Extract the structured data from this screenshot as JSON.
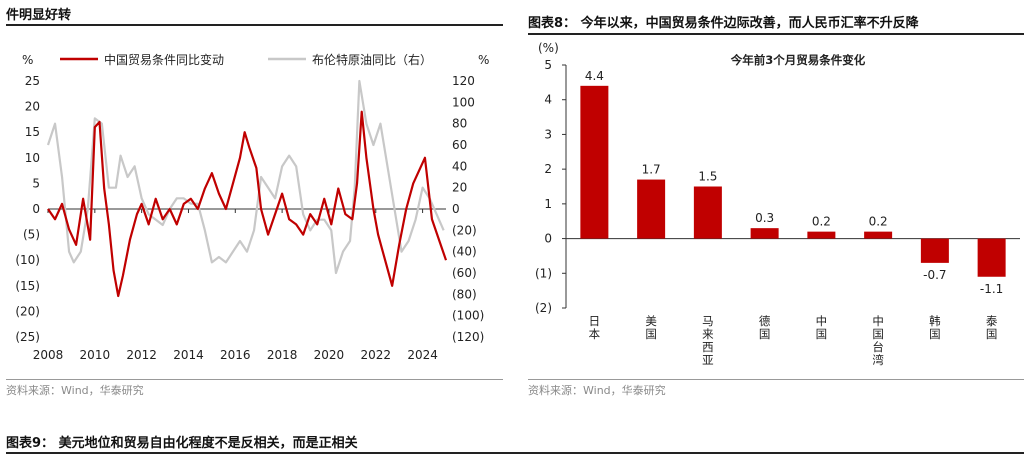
{
  "left": {
    "title": "件明显好转",
    "source": "资料来源：Wind，华泰研究",
    "chart_data": {
      "type": "line",
      "left_unit": "%",
      "right_unit": "%",
      "x_ticks": [
        "2008",
        "2010",
        "2012",
        "2014",
        "2016",
        "2018",
        "2020",
        "2022",
        "2024"
      ],
      "x_range": [
        2008,
        2025.0
      ],
      "y_left_ticks": [
        25,
        20,
        15,
        10,
        5,
        0,
        -5,
        -10,
        -15,
        -20,
        -25
      ],
      "y_left_tick_labels": [
        "25",
        "20",
        "15",
        "10",
        "5",
        "0",
        "(5)",
        "(10)",
        "(15)",
        "(20)",
        "(25)"
      ],
      "y_left_range": [
        -25,
        25
      ],
      "y_right_ticks": [
        120,
        100,
        80,
        60,
        40,
        20,
        0,
        -20,
        -40,
        -60,
        -80,
        -100,
        -120
      ],
      "y_right_tick_labels": [
        "120",
        "100",
        "80",
        "60",
        "40",
        "20",
        "0",
        "(20)",
        "(40)",
        "(60)",
        "(80)",
        "(100)",
        "(120)"
      ],
      "y_right_range": [
        -120,
        120
      ],
      "series": [
        {
          "name": "中国贸易条件同比变动",
          "color": "#c00000",
          "axis": "left",
          "x": [
            2008,
            2008.3,
            2008.6,
            2008.9,
            2009.2,
            2009.5,
            2009.8,
            2010.0,
            2010.2,
            2010.4,
            2010.6,
            2010.8,
            2011.0,
            2011.2,
            2011.5,
            2011.8,
            2012.0,
            2012.3,
            2012.6,
            2012.9,
            2013.2,
            2013.5,
            2013.8,
            2014.1,
            2014.4,
            2014.7,
            2015.0,
            2015.3,
            2015.6,
            2015.9,
            2016.2,
            2016.4,
            2016.6,
            2016.9,
            2017.1,
            2017.4,
            2017.7,
            2018.0,
            2018.3,
            2018.6,
            2018.9,
            2019.2,
            2019.5,
            2019.8,
            2020.1,
            2020.4,
            2020.7,
            2021.0,
            2021.2,
            2021.4,
            2021.6,
            2021.9,
            2022.1,
            2022.4,
            2022.7,
            2023.0,
            2023.3,
            2023.6,
            2023.9,
            2024.1,
            2024.4,
            2024.7,
            2025.0
          ],
          "y": [
            0,
            -2,
            1,
            -4,
            -7,
            2,
            -6,
            16,
            17,
            4,
            -3,
            -12,
            -17,
            -13,
            -6,
            -1,
            1,
            -3,
            2,
            -2,
            0,
            -3,
            1,
            2,
            0,
            4,
            7,
            3,
            0,
            5,
            10,
            15,
            12,
            8,
            0,
            -5,
            -1,
            3,
            -2,
            -3,
            -5,
            -1,
            -3,
            2,
            -3,
            4,
            -1,
            -2,
            5,
            19,
            10,
            0,
            -5,
            -10,
            -15,
            -7,
            0,
            5,
            8,
            10,
            -2,
            -6,
            -10
          ]
        },
        {
          "name": "布伦特原油同比（右）",
          "color": "#c8c8c8",
          "axis": "right",
          "x": [
            2008,
            2008.3,
            2008.6,
            2008.9,
            2009.1,
            2009.4,
            2009.7,
            2010.0,
            2010.3,
            2010.6,
            2010.9,
            2011.1,
            2011.4,
            2011.7,
            2012.0,
            2012.3,
            2012.6,
            2012.9,
            2013.2,
            2013.5,
            2013.8,
            2014.1,
            2014.4,
            2014.7,
            2015.0,
            2015.3,
            2015.6,
            2015.9,
            2016.2,
            2016.5,
            2016.8,
            2017.1,
            2017.4,
            2017.7,
            2018.0,
            2018.3,
            2018.6,
            2018.9,
            2019.2,
            2019.5,
            2019.8,
            2020.1,
            2020.3,
            2020.6,
            2020.9,
            2021.1,
            2021.3,
            2021.6,
            2021.9,
            2022.2,
            2022.5,
            2022.8,
            2023.1,
            2023.4,
            2023.7,
            2024.0,
            2024.3,
            2024.6,
            2024.9
          ],
          "y": [
            60,
            80,
            30,
            -40,
            -50,
            -40,
            0,
            85,
            80,
            20,
            20,
            50,
            30,
            40,
            10,
            -5,
            -10,
            -15,
            0,
            10,
            10,
            5,
            5,
            -20,
            -50,
            -45,
            -50,
            -40,
            -30,
            -40,
            -20,
            30,
            20,
            10,
            40,
            50,
            40,
            -5,
            -20,
            -10,
            -10,
            -20,
            -60,
            -40,
            -30,
            20,
            120,
            80,
            60,
            80,
            40,
            0,
            -40,
            -30,
            -10,
            20,
            10,
            -5,
            -20
          ]
        }
      ]
    }
  },
  "right": {
    "title": "图表8：  今年以来，中国贸易条件边际改善，而人民币汇率不升反降",
    "source": "资料来源：Wind，华泰研究",
    "chart_data": {
      "type": "bar",
      "title": "今年前3个月贸易条件变化",
      "unit": "(%)",
      "categories": [
        "日本",
        "美国",
        "马来西亚",
        "德国",
        "中国",
        "中国台湾",
        "韩国",
        "泰国"
      ],
      "values": [
        4.4,
        1.7,
        1.5,
        0.3,
        0.2,
        0.2,
        -0.7,
        -1.1
      ],
      "value_labels": [
        "4.4",
        "1.7",
        "1.5",
        "0.3",
        "0.2",
        "0.2",
        "-0.7",
        "-1.1"
      ],
      "y_ticks": [
        5,
        4,
        3,
        2,
        1,
        0,
        -1,
        -2
      ],
      "y_tick_labels": [
        "5",
        "4",
        "3",
        "2",
        "1",
        "0",
        "(1)",
        "(2)"
      ],
      "ylim": [
        -2,
        5
      ],
      "bar_color": "#c00000"
    }
  },
  "bottom": {
    "title": "图表9：  美元地位和贸易自由化程度不是反相关，而是正相关"
  }
}
